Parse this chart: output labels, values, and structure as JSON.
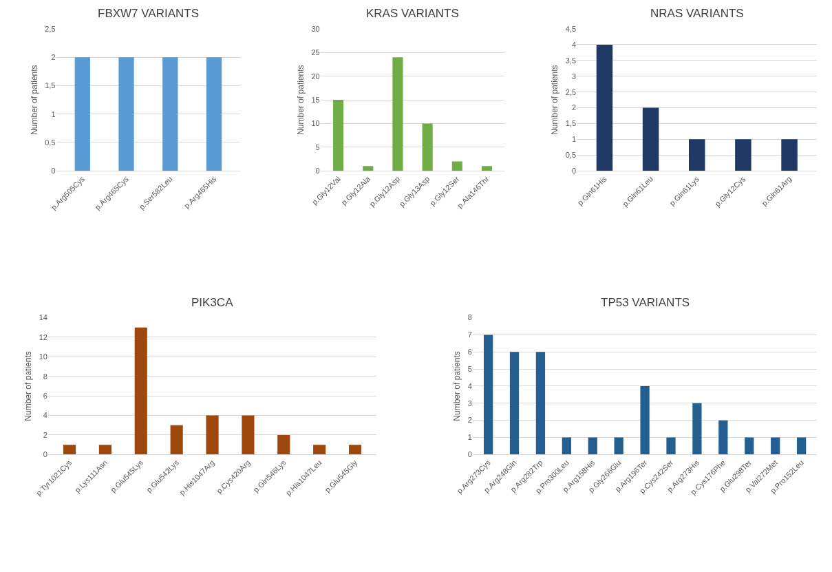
{
  "chart_data": [
    {
      "type": "bar",
      "title": "FBXW7 VARIANTS",
      "ylabel": "Number of patients",
      "categories": [
        "p.Arg505Cys",
        "p.Arg465Cys",
        "p.Ser582Leu",
        "p.Arg465His"
      ],
      "values": [
        2,
        2,
        2,
        2
      ],
      "color": "#5b9bd5",
      "ylim": [
        0,
        2.5
      ],
      "yticks": [
        0,
        {
          "value": 0.5,
          "label": "0,5"
        },
        1,
        {
          "value": 1.5,
          "label": "1,5"
        },
        2,
        {
          "value": 2.5,
          "label": "2,5"
        }
      ],
      "grid": "y"
    },
    {
      "type": "bar",
      "title": "KRAS VARIANTS",
      "ylabel": "Number of patients",
      "categories": [
        "p.Gly12Val",
        "p.Gly12Ala",
        "p.Gly12Asp",
        "p.Gly13Asp",
        "p.Gly12Ser",
        "p.Ala146Thr"
      ],
      "values": [
        15,
        1,
        24,
        10,
        2,
        1
      ],
      "color": "#70ad47",
      "ylim": [
        0,
        30
      ],
      "yticks": [
        0,
        5,
        10,
        15,
        20,
        25,
        30
      ],
      "grid": "y"
    },
    {
      "type": "bar",
      "title": "NRAS VARIANTS",
      "ylabel": "Number of patients",
      "categories": [
        "p.Gln61His",
        "p.Gln61Leu",
        "p.Gln61Lys",
        "p.Gly12Cys",
        "p.Gln61Arg"
      ],
      "values": [
        4,
        2,
        1,
        1,
        1
      ],
      "color": "#203864",
      "ylim": [
        0,
        4.5
      ],
      "yticks": [
        0,
        {
          "value": 0.5,
          "label": "0,5"
        },
        1,
        {
          "value": 1.5,
          "label": "1,5"
        },
        2,
        {
          "value": 2.5,
          "label": "2,5"
        },
        3,
        {
          "value": 3.5,
          "label": "3,5"
        },
        4,
        {
          "value": 4.5,
          "label": "4,5"
        }
      ],
      "grid": "y"
    },
    {
      "type": "bar",
      "title": "PIK3CA",
      "ylabel": "Number of patients",
      "categories": [
        "p.Tyr1021Cys",
        "p.Lys111Asn",
        "p.Glu545Lys",
        "p.Glu542Lys",
        "p.His1047Arg",
        "p.Cys420Arg",
        "p.Gln546Lys",
        "p.His1047Leu",
        "p.Glu545Gly"
      ],
      "values": [
        1,
        1,
        13,
        3,
        4,
        4,
        2,
        1,
        1
      ],
      "color": "#9e480e",
      "ylim": [
        0,
        14
      ],
      "yticks": [
        0,
        2,
        4,
        6,
        8,
        10,
        12,
        14
      ],
      "grid": "y"
    },
    {
      "type": "bar",
      "title": "TP53 VARIANTS",
      "ylabel": "Number of patients",
      "categories": [
        "p.Arg273Cys",
        "p.Arg248Gln",
        "p.Arg282Trp",
        "p.Pro300Leu",
        "p.Arg158His",
        "p.Gly266Glu",
        "p.Arg196Ter",
        "p.Cys242Ser",
        "p.Arg273His",
        "p.Cys176Phe",
        "p.Glu298Ter",
        "p.Val272Met",
        "p.Pro152Leu"
      ],
      "values": [
        7,
        6,
        6,
        1,
        1,
        1,
        4,
        1,
        3,
        2,
        1,
        1,
        1
      ],
      "color": "#255e91",
      "ylim": [
        0,
        8
      ],
      "yticks": [
        0,
        1,
        2,
        3,
        4,
        5,
        6,
        7,
        8
      ],
      "grid": "y"
    }
  ]
}
